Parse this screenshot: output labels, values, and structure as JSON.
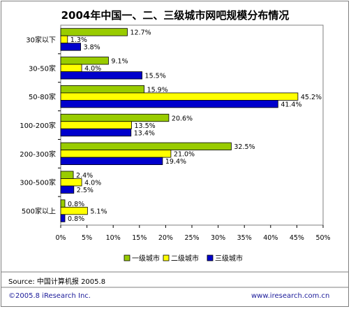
{
  "chart_data": {
    "type": "bar",
    "orientation": "horizontal",
    "title": "2004年中国一、二、三级城市网吧规模分布情况",
    "categories": [
      "30家以下",
      "30-50家",
      "50-80家",
      "100-200家",
      "200-300家",
      "300-500家",
      "500家以上"
    ],
    "series": [
      {
        "name": "一级城市",
        "color": "#99cc00",
        "values": [
          12.7,
          9.1,
          15.9,
          20.6,
          32.5,
          2.4,
          0.8
        ],
        "labels": [
          "12.7%",
          "9.1%",
          "15.9%",
          "20.6%",
          "32.5%",
          "2.4%",
          "0.8%"
        ]
      },
      {
        "name": "二级城市",
        "color": "#ffff00",
        "values": [
          1.3,
          4.0,
          45.2,
          13.5,
          21.0,
          4.0,
          5.1
        ],
        "labels": [
          "1.3%",
          "4.0%",
          "45.2%",
          "13.5%",
          "21.0%",
          "4.0%",
          "5.1%"
        ]
      },
      {
        "name": "三级城市",
        "color": "#0000cc",
        "values": [
          3.8,
          15.5,
          41.4,
          13.4,
          19.4,
          2.5,
          0.8
        ],
        "labels": [
          "3.8%",
          "15.5%",
          "41.4%",
          "13.4%",
          "19.4%",
          "2.5%",
          "0.8%"
        ]
      }
    ],
    "xlim": [
      0,
      50
    ],
    "xticks": [
      "0%",
      "5%",
      "10%",
      "15%",
      "20%",
      "25%",
      "30%",
      "35%",
      "40%",
      "45%",
      "50%"
    ],
    "grid": false,
    "legend_position": "bottom"
  },
  "footer": {
    "source": "Source: 中国计算机报 2005.8",
    "copyright": "©2005.8 iResearch Inc.",
    "website": "www.iresearch.com.cn"
  }
}
